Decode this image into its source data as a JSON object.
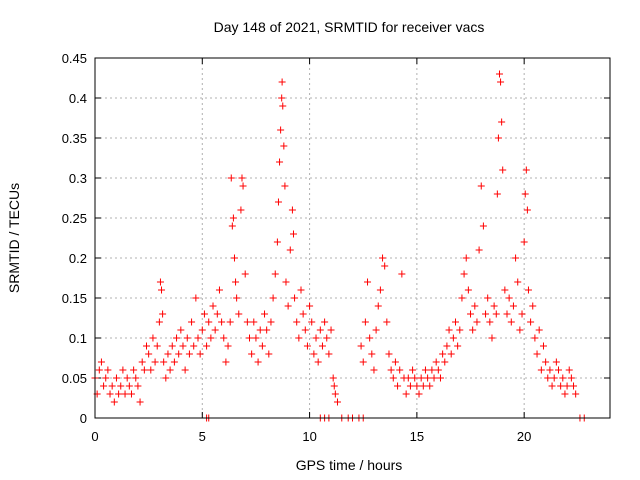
{
  "chart_data": {
    "type": "scatter",
    "title": "Day 148 of 2021, SRMTID for receiver vacs",
    "xlabel": "GPS time / hours",
    "ylabel": "SRMTID / TECUs",
    "xlim": [
      0,
      24
    ],
    "ylim": [
      0,
      0.45
    ],
    "xticks": [
      0,
      5,
      10,
      15,
      20
    ],
    "xtick_labels": [
      "0",
      "5",
      "10",
      "15",
      "20"
    ],
    "yticks": [
      0,
      0.05,
      0.1,
      0.15,
      0.2,
      0.25,
      0.3,
      0.35,
      0.4,
      0.45
    ],
    "ytick_labels": [
      "0",
      "0.05",
      "0.1",
      "0.15",
      "0.2",
      "0.25",
      "0.3",
      "0.35",
      "0.4",
      "0.45"
    ],
    "grid": true,
    "marker": "+",
    "color": "#ff0000",
    "series": [
      {
        "name": "SRMTID",
        "points": [
          [
            0.0,
            0.05
          ],
          [
            0.1,
            0.03
          ],
          [
            0.2,
            0.06
          ],
          [
            0.3,
            0.07
          ],
          [
            0.4,
            0.04
          ],
          [
            0.5,
            0.05
          ],
          [
            0.6,
            0.06
          ],
          [
            0.7,
            0.03
          ],
          [
            0.8,
            0.04
          ],
          [
            0.9,
            0.02
          ],
          [
            1.0,
            0.05
          ],
          [
            1.1,
            0.03
          ],
          [
            1.2,
            0.04
          ],
          [
            1.3,
            0.06
          ],
          [
            1.4,
            0.03
          ],
          [
            1.5,
            0.05
          ],
          [
            1.6,
            0.04
          ],
          [
            1.7,
            0.03
          ],
          [
            1.8,
            0.06
          ],
          [
            1.9,
            0.05
          ],
          [
            2.0,
            0.04
          ],
          [
            2.1,
            0.02
          ],
          [
            2.2,
            0.07
          ],
          [
            2.3,
            0.06
          ],
          [
            2.4,
            0.09
          ],
          [
            2.5,
            0.08
          ],
          [
            2.6,
            0.06
          ],
          [
            2.7,
            0.1
          ],
          [
            2.8,
            0.07
          ],
          [
            2.9,
            0.09
          ],
          [
            3.0,
            0.12
          ],
          [
            3.05,
            0.17
          ],
          [
            3.1,
            0.16
          ],
          [
            3.15,
            0.13
          ],
          [
            3.2,
            0.07
          ],
          [
            3.3,
            0.05
          ],
          [
            3.4,
            0.08
          ],
          [
            3.5,
            0.06
          ],
          [
            3.6,
            0.09
          ],
          [
            3.7,
            0.07
          ],
          [
            3.8,
            0.1
          ],
          [
            3.9,
            0.08
          ],
          [
            4.0,
            0.11
          ],
          [
            4.1,
            0.09
          ],
          [
            4.2,
            0.06
          ],
          [
            4.3,
            0.1
          ],
          [
            4.4,
            0.08
          ],
          [
            4.5,
            0.12
          ],
          [
            4.6,
            0.09
          ],
          [
            4.7,
            0.15
          ],
          [
            4.8,
            0.1
          ],
          [
            4.9,
            0.08
          ],
          [
            5.0,
            0.11
          ],
          [
            5.1,
            0.13
          ],
          [
            5.2,
            0.09
          ],
          [
            5.3,
            0.12
          ],
          [
            5.4,
            0.1
          ],
          [
            5.5,
            0.14
          ],
          [
            5.6,
            0.11
          ],
          [
            5.7,
            0.13
          ],
          [
            5.8,
            0.16
          ],
          [
            5.9,
            0.12
          ],
          [
            6.0,
            0.1
          ],
          [
            6.1,
            0.07
          ],
          [
            6.2,
            0.09
          ],
          [
            6.3,
            0.12
          ],
          [
            6.35,
            0.3
          ],
          [
            6.4,
            0.24
          ],
          [
            6.45,
            0.25
          ],
          [
            6.5,
            0.2
          ],
          [
            6.55,
            0.17
          ],
          [
            6.6,
            0.15
          ],
          [
            6.7,
            0.13
          ],
          [
            6.8,
            0.26
          ],
          [
            6.85,
            0.3
          ],
          [
            6.9,
            0.29
          ],
          [
            7.0,
            0.18
          ],
          [
            7.1,
            0.12
          ],
          [
            7.2,
            0.1
          ],
          [
            7.3,
            0.08
          ],
          [
            7.4,
            0.12
          ],
          [
            7.5,
            0.1
          ],
          [
            7.6,
            0.07
          ],
          [
            7.7,
            0.11
          ],
          [
            7.8,
            0.09
          ],
          [
            7.9,
            0.13
          ],
          [
            8.0,
            0.11
          ],
          [
            8.1,
            0.08
          ],
          [
            8.2,
            0.12
          ],
          [
            8.3,
            0.15
          ],
          [
            8.4,
            0.18
          ],
          [
            8.5,
            0.22
          ],
          [
            8.55,
            0.27
          ],
          [
            8.6,
            0.32
          ],
          [
            8.65,
            0.36
          ],
          [
            8.7,
            0.4
          ],
          [
            8.72,
            0.42
          ],
          [
            8.75,
            0.39
          ],
          [
            8.8,
            0.34
          ],
          [
            8.85,
            0.29
          ],
          [
            8.9,
            0.17
          ],
          [
            9.0,
            0.14
          ],
          [
            9.1,
            0.21
          ],
          [
            9.2,
            0.26
          ],
          [
            9.25,
            0.23
          ],
          [
            9.3,
            0.15
          ],
          [
            9.4,
            0.12
          ],
          [
            9.5,
            0.1
          ],
          [
            9.6,
            0.16
          ],
          [
            9.7,
            0.13
          ],
          [
            9.8,
            0.11
          ],
          [
            9.9,
            0.09
          ],
          [
            10.0,
            0.14
          ],
          [
            10.1,
            0.12
          ],
          [
            10.2,
            0.08
          ],
          [
            10.3,
            0.1
          ],
          [
            10.4,
            0.07
          ],
          [
            10.5,
            0.11
          ],
          [
            10.6,
            0.09
          ],
          [
            10.7,
            0.12
          ],
          [
            10.8,
            0.1
          ],
          [
            10.9,
            0.08
          ],
          [
            11.0,
            0.11
          ],
          [
            11.1,
            0.05
          ],
          [
            11.15,
            0.04
          ],
          [
            11.2,
            0.03
          ],
          [
            11.3,
            0.02
          ],
          [
            12.4,
            0.09
          ],
          [
            12.5,
            0.07
          ],
          [
            12.6,
            0.12
          ],
          [
            12.7,
            0.17
          ],
          [
            12.8,
            0.1
          ],
          [
            12.9,
            0.08
          ],
          [
            13.0,
            0.06
          ],
          [
            13.1,
            0.11
          ],
          [
            13.2,
            0.14
          ],
          [
            13.3,
            0.16
          ],
          [
            13.4,
            0.2
          ],
          [
            13.5,
            0.19
          ],
          [
            13.6,
            0.12
          ],
          [
            13.7,
            0.08
          ],
          [
            13.8,
            0.06
          ],
          [
            13.9,
            0.05
          ],
          [
            14.0,
            0.07
          ],
          [
            14.1,
            0.04
          ],
          [
            14.2,
            0.06
          ],
          [
            14.3,
            0.18
          ],
          [
            14.4,
            0.05
          ],
          [
            14.5,
            0.03
          ],
          [
            14.6,
            0.05
          ],
          [
            14.7,
            0.04
          ],
          [
            14.8,
            0.06
          ],
          [
            14.9,
            0.05
          ],
          [
            15.0,
            0.04
          ],
          [
            15.1,
            0.03
          ],
          [
            15.2,
            0.05
          ],
          [
            15.3,
            0.04
          ],
          [
            15.4,
            0.06
          ],
          [
            15.5,
            0.05
          ],
          [
            15.6,
            0.04
          ],
          [
            15.7,
            0.06
          ],
          [
            15.8,
            0.05
          ],
          [
            15.9,
            0.07
          ],
          [
            16.0,
            0.06
          ],
          [
            16.1,
            0.05
          ],
          [
            16.2,
            0.08
          ],
          [
            16.3,
            0.07
          ],
          [
            16.4,
            0.09
          ],
          [
            16.5,
            0.11
          ],
          [
            16.6,
            0.08
          ],
          [
            16.7,
            0.1
          ],
          [
            16.8,
            0.12
          ],
          [
            16.9,
            0.09
          ],
          [
            17.0,
            0.11
          ],
          [
            17.1,
            0.15
          ],
          [
            17.2,
            0.18
          ],
          [
            17.3,
            0.2
          ],
          [
            17.4,
            0.16
          ],
          [
            17.5,
            0.13
          ],
          [
            17.6,
            0.11
          ],
          [
            17.7,
            0.14
          ],
          [
            17.8,
            0.12
          ],
          [
            17.9,
            0.21
          ],
          [
            18.0,
            0.29
          ],
          [
            18.1,
            0.24
          ],
          [
            18.2,
            0.13
          ],
          [
            18.3,
            0.15
          ],
          [
            18.4,
            0.12
          ],
          [
            18.5,
            0.1
          ],
          [
            18.6,
            0.14
          ],
          [
            18.7,
            0.13
          ],
          [
            18.75,
            0.28
          ],
          [
            18.8,
            0.35
          ],
          [
            18.85,
            0.43
          ],
          [
            18.9,
            0.42
          ],
          [
            18.95,
            0.37
          ],
          [
            19.0,
            0.31
          ],
          [
            19.1,
            0.16
          ],
          [
            19.2,
            0.13
          ],
          [
            19.3,
            0.15
          ],
          [
            19.4,
            0.12
          ],
          [
            19.5,
            0.14
          ],
          [
            19.6,
            0.2
          ],
          [
            19.7,
            0.17
          ],
          [
            19.8,
            0.11
          ],
          [
            19.9,
            0.13
          ],
          [
            20.0,
            0.22
          ],
          [
            20.05,
            0.28
          ],
          [
            20.1,
            0.31
          ],
          [
            20.15,
            0.26
          ],
          [
            20.2,
            0.16
          ],
          [
            20.3,
            0.12
          ],
          [
            20.4,
            0.14
          ],
          [
            20.5,
            0.1
          ],
          [
            20.6,
            0.08
          ],
          [
            20.7,
            0.11
          ],
          [
            20.8,
            0.06
          ],
          [
            20.9,
            0.09
          ],
          [
            21.0,
            0.07
          ],
          [
            21.1,
            0.05
          ],
          [
            21.2,
            0.06
          ],
          [
            21.3,
            0.04
          ],
          [
            21.4,
            0.05
          ],
          [
            21.5,
            0.07
          ],
          [
            21.6,
            0.06
          ],
          [
            21.7,
            0.04
          ],
          [
            21.8,
            0.05
          ],
          [
            21.9,
            0.03
          ],
          [
            22.0,
            0.04
          ],
          [
            22.1,
            0.06
          ],
          [
            22.2,
            0.05
          ],
          [
            22.3,
            0.04
          ],
          [
            22.4,
            0.03
          ],
          [
            5.2,
            0.0
          ],
          [
            5.3,
            0.0
          ],
          [
            10.5,
            0.0
          ],
          [
            10.7,
            0.0
          ],
          [
            10.9,
            0.0
          ],
          [
            11.5,
            0.0
          ],
          [
            11.8,
            0.0
          ],
          [
            12.0,
            0.0
          ],
          [
            12.3,
            0.0
          ],
          [
            12.5,
            0.0
          ],
          [
            22.6,
            0.0
          ],
          [
            22.8,
            0.0
          ]
        ]
      }
    ]
  }
}
